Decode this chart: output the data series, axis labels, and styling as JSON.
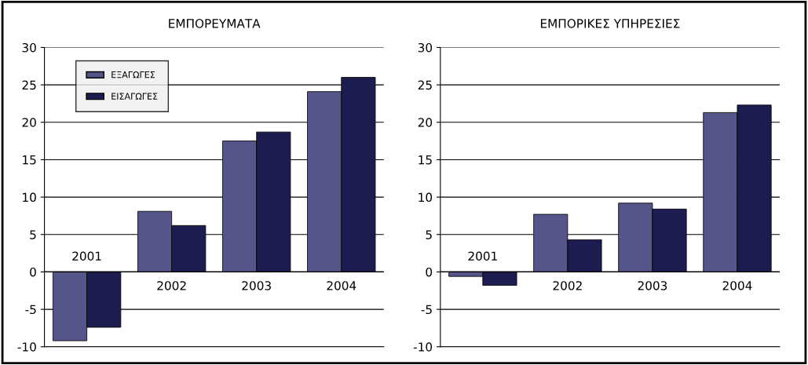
{
  "chart_data": [
    {
      "type": "bar",
      "title": "ΕΜΠΟΡΕΥΜΑΤΑ",
      "categories": [
        "2001",
        "2002",
        "2003",
        "2004"
      ],
      "series": [
        {
          "name": "ΕΞΑΓΩΓΕΣ",
          "color": "#55558a",
          "values": [
            -9.2,
            8.1,
            17.5,
            24.1
          ]
        },
        {
          "name": "ΕΙΣΑΓΩΓΕΣ",
          "color": "#1c1c50",
          "values": [
            -7.4,
            6.2,
            18.7,
            26.0
          ]
        }
      ],
      "ylim": [
        -10,
        30
      ],
      "yticks": [
        -10,
        -5,
        0,
        5,
        10,
        15,
        20,
        25,
        30
      ],
      "grid": "y",
      "legend": "top left"
    },
    {
      "type": "bar",
      "title": "ΕΜΠΟΡΙΚΕΣ ΥΠΗΡΕΣΙΕΣ",
      "categories": [
        "2001",
        "2002",
        "2003",
        "2004"
      ],
      "series": [
        {
          "color": "#55558a",
          "values": [
            -0.6,
            7.7,
            9.2,
            21.3
          ]
        },
        {
          "color": "#1c1c50",
          "values": [
            -1.8,
            4.3,
            8.4,
            22.3
          ]
        }
      ],
      "ylim": [
        -10,
        30
      ],
      "yticks": [
        -10,
        -5,
        0,
        5,
        10,
        15,
        20,
        25,
        30
      ],
      "grid": "y"
    }
  ]
}
